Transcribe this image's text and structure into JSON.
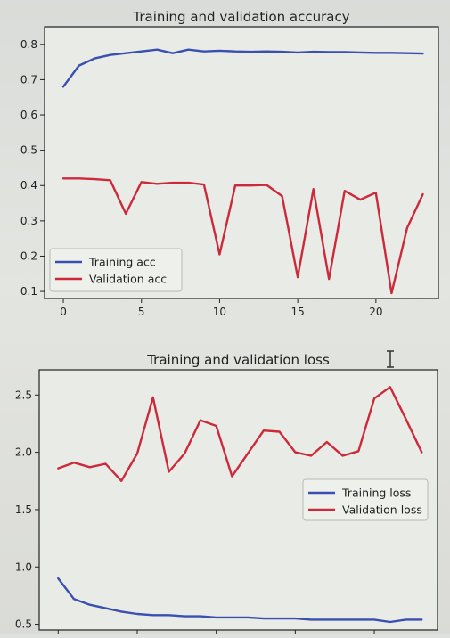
{
  "chart_data": [
    {
      "type": "line",
      "title": "Training and validation accuracy",
      "xlabel": "",
      "ylabel": "",
      "xlim": [
        -1.2,
        24
      ],
      "ylim": [
        0.08,
        0.85
      ],
      "xticks": [
        0,
        5,
        10,
        15,
        20
      ],
      "yticks": [
        0.1,
        0.2,
        0.3,
        0.4,
        0.5,
        0.6,
        0.7,
        0.8
      ],
      "legend_position": "lower-left",
      "x": [
        0,
        1,
        2,
        3,
        4,
        5,
        6,
        7,
        8,
        9,
        10,
        11,
        12,
        13,
        14,
        15,
        16,
        17,
        18,
        19,
        20,
        21,
        22,
        23
      ],
      "series": [
        {
          "name": "Training acc",
          "color": "#3a4fb0",
          "values": [
            0.68,
            0.74,
            0.76,
            0.77,
            0.775,
            0.78,
            0.785,
            0.775,
            0.785,
            0.78,
            0.782,
            0.78,
            0.779,
            0.78,
            0.779,
            0.777,
            0.779,
            0.778,
            0.778,
            0.777,
            0.776,
            0.776,
            0.775,
            0.774
          ]
        },
        {
          "name": "Validation acc",
          "color": "#cc2a3a",
          "values": [
            0.42,
            0.42,
            0.418,
            0.415,
            0.32,
            0.41,
            0.405,
            0.408,
            0.408,
            0.403,
            0.205,
            0.4,
            0.4,
            0.402,
            0.37,
            0.14,
            0.39,
            0.135,
            0.385,
            0.36,
            0.38,
            0.095,
            0.28,
            0.375
          ]
        }
      ]
    },
    {
      "type": "line",
      "title": "Training and validation loss",
      "xlabel": "",
      "ylabel": "",
      "xlim": [
        -1.2,
        24
      ],
      "ylim": [
        0.45,
        2.72
      ],
      "xticks": [
        0,
        5,
        10,
        15,
        20
      ],
      "yticks": [
        0.5,
        1.0,
        1.5,
        2.0,
        2.5
      ],
      "legend_position": "center-right",
      "x": [
        0,
        1,
        2,
        3,
        4,
        5,
        6,
        7,
        8,
        9,
        10,
        11,
        12,
        13,
        14,
        15,
        16,
        17,
        18,
        19,
        20,
        21,
        22,
        23
      ],
      "series": [
        {
          "name": "Training loss",
          "color": "#3a4fb0",
          "values": [
            0.9,
            0.72,
            0.67,
            0.64,
            0.61,
            0.59,
            0.58,
            0.58,
            0.57,
            0.57,
            0.56,
            0.56,
            0.56,
            0.55,
            0.55,
            0.55,
            0.54,
            0.54,
            0.54,
            0.54,
            0.54,
            0.52,
            0.54,
            0.54
          ]
        },
        {
          "name": "Validation loss",
          "color": "#cc2a3a",
          "values": [
            1.86,
            1.91,
            1.87,
            1.9,
            1.75,
            1.99,
            2.48,
            1.83,
            1.99,
            2.28,
            2.23,
            1.79,
            1.99,
            2.19,
            2.18,
            2.0,
            1.97,
            2.09,
            1.97,
            2.01,
            2.47,
            2.57,
            2.29,
            2.0
          ]
        }
      ]
    }
  ]
}
